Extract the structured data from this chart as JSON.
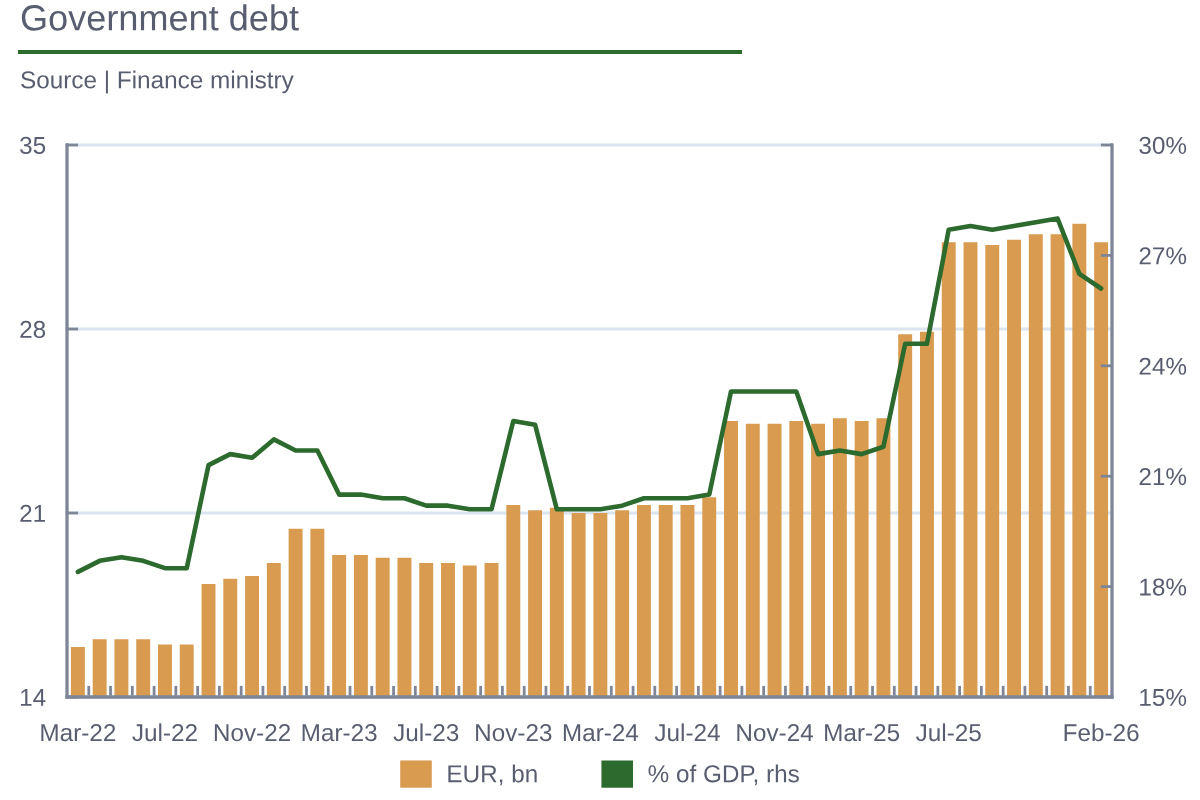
{
  "chart_data": {
    "type": "bar",
    "title": "Government debt",
    "annotations": [
      "Source | Finance ministry"
    ],
    "categories": [
      "Mar-22",
      null,
      null,
      null,
      "Jul-22",
      null,
      null,
      null,
      "Nov-22",
      null,
      null,
      null,
      "Mar-23",
      null,
      null,
      null,
      "Jul-23",
      null,
      null,
      null,
      "Nov-23",
      null,
      null,
      null,
      "Mar-24",
      null,
      null,
      null,
      "Jul-24",
      null,
      null,
      null,
      "Nov-24",
      null,
      null,
      null,
      "Mar-25",
      null,
      null,
      null,
      "Jul-25",
      null,
      null,
      null,
      null,
      null,
      null,
      "Feb-26"
    ],
    "series": [
      {
        "name": "EUR, bn",
        "color": "#d99b50",
        "values": [
          15.9,
          16.2,
          16.2,
          16.2,
          16.0,
          16.0,
          18.3,
          18.5,
          18.6,
          19.1,
          20.4,
          20.4,
          19.4,
          19.4,
          19.3,
          19.3,
          19.1,
          19.1,
          19.0,
          19.1,
          21.3,
          21.1,
          21.2,
          21.0,
          21.0,
          21.1,
          21.3,
          21.3,
          21.3,
          21.6,
          24.5,
          24.4,
          24.4,
          24.5,
          24.4,
          24.6,
          24.5,
          24.6,
          27.8,
          27.9,
          31.3,
          31.3,
          31.2,
          31.4,
          31.6,
          31.6,
          32.0,
          31.3
        ]
      },
      {
        "name": "% of GDP, rhs",
        "type": "line",
        "axis": "y2",
        "color": "#2d6a2e",
        "values": [
          18.4,
          18.7,
          18.8,
          18.7,
          18.5,
          18.5,
          21.3,
          21.6,
          21.5,
          22.0,
          21.7,
          21.7,
          20.5,
          20.5,
          20.4,
          20.4,
          20.2,
          20.2,
          20.1,
          20.1,
          22.5,
          22.4,
          20.1,
          20.1,
          20.1,
          20.2,
          20.4,
          20.4,
          20.4,
          20.5,
          23.3,
          23.3,
          23.3,
          23.3,
          21.6,
          21.7,
          21.6,
          21.8,
          24.6,
          24.6,
          27.7,
          27.8,
          27.7,
          27.8,
          27.9,
          28.0,
          26.5,
          26.1
        ]
      }
    ],
    "ylim": [
      14,
      35
    ],
    "yticks": [
      14,
      21,
      28,
      35
    ],
    "y2lim": [
      15,
      30
    ],
    "y2ticks": [
      {
        "value": 15,
        "label": "15%"
      },
      {
        "value": 18,
        "label": "18%"
      },
      {
        "value": 21,
        "label": "21%"
      },
      {
        "value": 24,
        "label": "24%"
      },
      {
        "value": 27,
        "label": "27%"
      },
      {
        "value": 30,
        "label": "30%"
      }
    ],
    "grid": "y",
    "legend": "bottom",
    "marker": "none",
    "line_style": "solid"
  }
}
